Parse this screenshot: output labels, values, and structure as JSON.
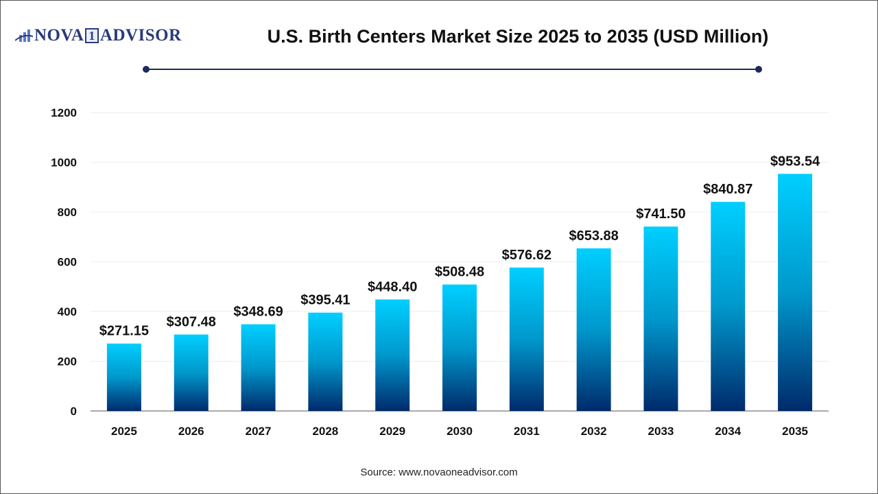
{
  "logo": {
    "text_left": "NOVA",
    "text_mid": "1",
    "text_right": "ADVISOR",
    "icon": "bar-chart-swoosh-icon"
  },
  "header": {
    "title": "U.S. Birth Centers Market Size 2025 to 2035 (USD Million)"
  },
  "footer": {
    "source": "Source: www.novaoneadvisor.com"
  },
  "colors": {
    "bar_top": "#00CFFF",
    "bar_bottom": "#002A6B",
    "rule": "#1E2A5A"
  },
  "chart_data": {
    "type": "bar",
    "title": "U.S. Birth Centers Market Size 2025 to 2035 (USD Million)",
    "categories": [
      "2025",
      "2026",
      "2027",
      "2028",
      "2029",
      "2030",
      "2031",
      "2032",
      "2033",
      "2034",
      "2035"
    ],
    "values": [
      271.15,
      307.48,
      348.69,
      395.41,
      448.4,
      508.48,
      576.62,
      653.88,
      741.5,
      840.87,
      953.54
    ],
    "data_labels": [
      "$271.15",
      "$307.48",
      "$348.69",
      "$395.41",
      "$448.40",
      "$508.48",
      "$576.62",
      "$653.88",
      "$741.50",
      "$840.87",
      "$953.54"
    ],
    "yticks": [
      "0",
      "200",
      "400",
      "600",
      "800",
      "1000",
      "1200"
    ],
    "ylim": [
      0,
      1200
    ],
    "xlabel": "",
    "ylabel": "",
    "grid": true,
    "legend": "none"
  }
}
